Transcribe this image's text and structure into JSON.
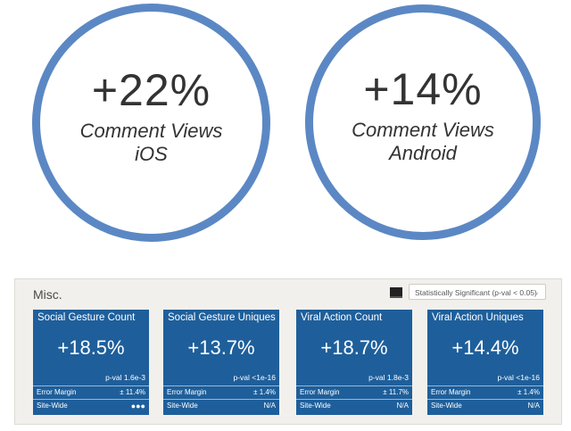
{
  "hero": [
    {
      "value": "+22%",
      "caption_line1": "Comment Views",
      "caption_line2": "iOS"
    },
    {
      "value": "+14%",
      "caption_line1": "Comment Views",
      "caption_line2": "Android"
    }
  ],
  "panel": {
    "title": "Misc.",
    "filter_label": "Statistically Significant (p-val < 0.05)",
    "error_margin_label": "Error Margin",
    "site_wide_label": "Site-Wide",
    "cards": [
      {
        "title": "Social Gesture Count",
        "value": "+18.5%",
        "pval": "p-val 1.6e-3",
        "error_margin": "± 11.4%",
        "site_wide": "●●●"
      },
      {
        "title": "Social Gesture Uniques",
        "value": "+13.7%",
        "pval": "p-val <1e-16",
        "error_margin": "± 1.4%",
        "site_wide": "N/A"
      },
      {
        "title": "Viral Action Count",
        "value": "+18.7%",
        "pval": "p-val 1.8e-3",
        "error_margin": "± 11.7%",
        "site_wide": "N/A"
      },
      {
        "title": "Viral Action Uniques",
        "value": "+14.4%",
        "pval": "p-val <1e-16",
        "error_margin": "± 1.4%",
        "site_wide": "N/A"
      }
    ]
  },
  "colors": {
    "circle_border": "#5b88c4",
    "card_bg": "#1e5f9b",
    "panel_bg": "#f2f0ec"
  }
}
